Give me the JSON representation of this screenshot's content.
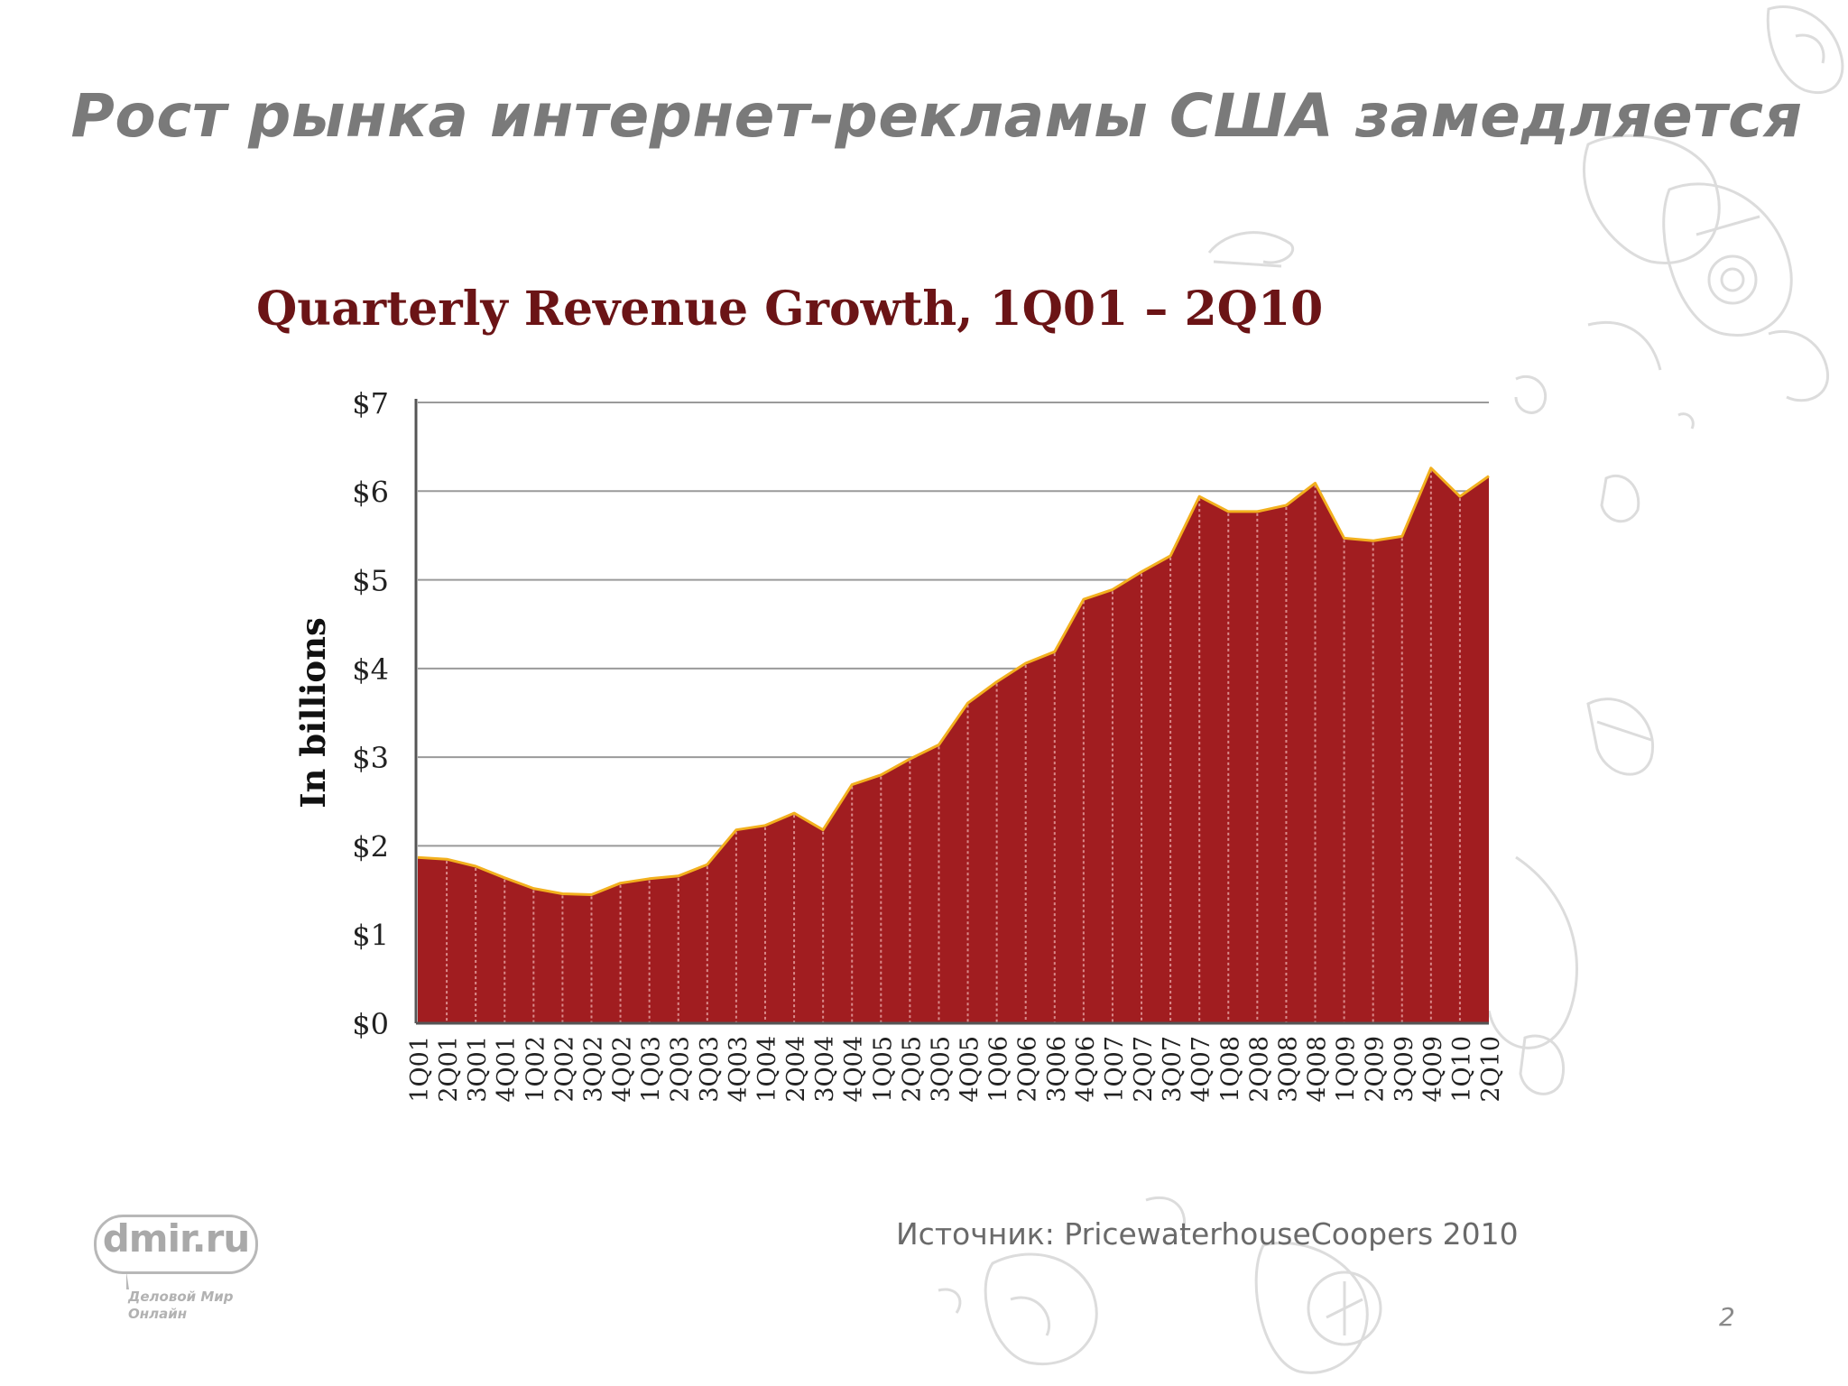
{
  "slide": {
    "title": "Рост рынка интернет-рекламы США замедляется",
    "source_note": "Источник: PricewaterhouseCoopers 2010",
    "page_number": "2"
  },
  "logo": {
    "text": "dmir.ru",
    "tagline_line1": "Деловой Мир",
    "tagline_line2": "Онлайн"
  },
  "chart_data": {
    "type": "area",
    "title": "Quarterly Revenue Growth, 1Q01 – 2Q10",
    "ylabel": "In billions",
    "xlabel": "",
    "ylim": [
      0,
      7
    ],
    "y_ticks": [
      "$0",
      "$1",
      "$2",
      "$3",
      "$4",
      "$5",
      "$6",
      "$7"
    ],
    "grid": true,
    "colors": {
      "fill": "#a11d20",
      "outline": "#f2b01e",
      "stripe": "#d98a8a",
      "grid": "#9a9a9a"
    },
    "categories": [
      "1Q01",
      "2Q01",
      "3Q01",
      "4Q01",
      "1Q02",
      "2Q02",
      "3Q02",
      "4Q02",
      "1Q03",
      "2Q03",
      "3Q03",
      "4Q03",
      "1Q04",
      "2Q04",
      "3Q04",
      "4Q04",
      "1Q05",
      "2Q05",
      "3Q05",
      "4Q05",
      "1Q06",
      "2Q06",
      "3Q06",
      "4Q06",
      "1Q07",
      "2Q07",
      "3Q07",
      "4Q07",
      "1Q08",
      "2Q08",
      "3Q08",
      "4Q08",
      "1Q09",
      "2Q09",
      "3Q09",
      "4Q09",
      "1Q10",
      "2Q10"
    ],
    "values": [
      1.87,
      1.85,
      1.77,
      1.64,
      1.52,
      1.46,
      1.45,
      1.58,
      1.63,
      1.66,
      1.79,
      2.18,
      2.23,
      2.37,
      2.18,
      2.69,
      2.8,
      2.98,
      3.14,
      3.61,
      3.85,
      4.06,
      4.19,
      4.78,
      4.89,
      5.09,
      5.27,
      5.94,
      5.77,
      5.77,
      5.84,
      6.09,
      5.47,
      5.44,
      5.49,
      6.26,
      5.94,
      6.17
    ]
  }
}
